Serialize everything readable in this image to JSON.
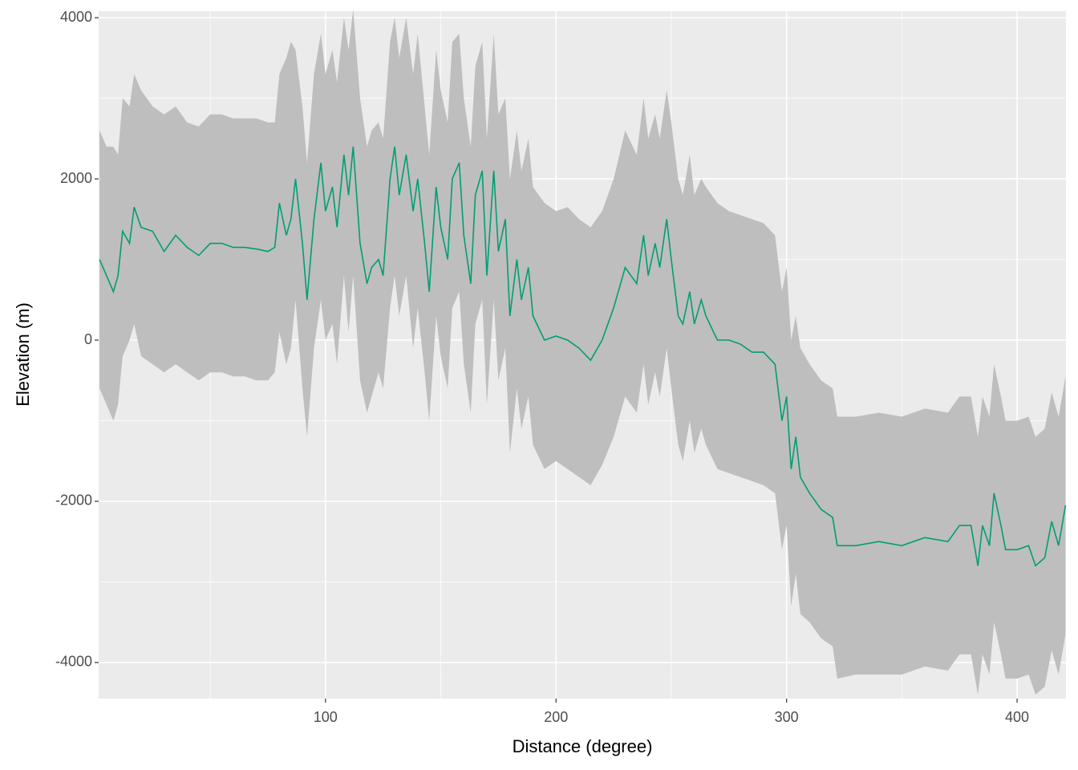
{
  "chart_data": {
    "type": "line",
    "x_label": "Distance (degree)",
    "y_label": "Elevation (m)",
    "xlim": [
      1.6,
      421.2
    ],
    "ylim": [
      -4448,
      4080
    ],
    "xticks": [
      100,
      200,
      300,
      400
    ],
    "yticks": [
      -4000,
      -2000,
      0,
      2000,
      4000
    ],
    "grid": true,
    "x": [
      2,
      5,
      8,
      10,
      12,
      15,
      17,
      20,
      25,
      30,
      35,
      40,
      45,
      50,
      55,
      60,
      65,
      70,
      75,
      78,
      80,
      83,
      85,
      87,
      90,
      92,
      95,
      98,
      100,
      103,
      105,
      108,
      110,
      112,
      115,
      118,
      120,
      123,
      125,
      128,
      130,
      132,
      135,
      138,
      140,
      143,
      145,
      148,
      150,
      153,
      155,
      158,
      160,
      163,
      165,
      168,
      170,
      173,
      175,
      178,
      180,
      183,
      185,
      188,
      190,
      195,
      200,
      205,
      210,
      215,
      220,
      225,
      230,
      235,
      238,
      240,
      243,
      245,
      248,
      250,
      253,
      255,
      258,
      260,
      263,
      265,
      270,
      275,
      280,
      285,
      290,
      295,
      298,
      300,
      302,
      304,
      306,
      310,
      315,
      320,
      322,
      330,
      340,
      350,
      360,
      370,
      375,
      380,
      383,
      385,
      388,
      390,
      393,
      395,
      400,
      405,
      408,
      412,
      415,
      418,
      421
    ],
    "series": [
      {
        "color": "#009e73",
        "values": [
          1000,
          800,
          600,
          800,
          1350,
          1200,
          1650,
          1400,
          1350,
          1100,
          1300,
          1150,
          1050,
          1200,
          1200,
          1150,
          1150,
          1130,
          1100,
          1150,
          1700,
          1300,
          1500,
          2000,
          1200,
          500,
          1500,
          2200,
          1600,
          1900,
          1400,
          2300,
          1800,
          2400,
          1200,
          700,
          900,
          1000,
          800,
          2000,
          2400,
          1800,
          2300,
          1600,
          2000,
          1200,
          600,
          1900,
          1400,
          1000,
          2000,
          2200,
          1300,
          700,
          1800,
          2100,
          800,
          2100,
          1100,
          1500,
          300,
          1000,
          500,
          900,
          300,
          0,
          50,
          0,
          -100,
          -250,
          0,
          400,
          900,
          700,
          1300,
          800,
          1200,
          900,
          1500,
          1000,
          300,
          200,
          600,
          200,
          500,
          300,
          0,
          0,
          -50,
          -150,
          -150,
          -300,
          -1000,
          -700,
          -1600,
          -1200,
          -1700,
          -1900,
          -2100,
          -2200,
          -2550,
          -2550,
          -2500,
          -2550,
          -2450,
          -2500,
          -2300,
          -2300,
          -2800,
          -2300,
          -2550,
          -1900,
          -2300,
          -2600,
          -2600,
          -2550,
          -2800,
          -2700,
          -2250,
          -2550,
          -2050
        ]
      }
    ],
    "ribbon": {
      "color": "#bebebe",
      "lower": [
        -600,
        -800,
        -1000,
        -800,
        -200,
        0,
        200,
        -200,
        -300,
        -400,
        -300,
        -400,
        -500,
        -400,
        -400,
        -450,
        -450,
        -500,
        -500,
        -400,
        100,
        -300,
        -100,
        500,
        -600,
        -1200,
        -100,
        500,
        0,
        200,
        -300,
        800,
        100,
        800,
        -500,
        -900,
        -700,
        -400,
        -600,
        400,
        800,
        300,
        800,
        -100,
        400,
        -400,
        -1000,
        300,
        -200,
        -600,
        400,
        600,
        -300,
        -900,
        200,
        500,
        -800,
        500,
        -500,
        -100,
        -1400,
        -600,
        -1100,
        -700,
        -1300,
        -1600,
        -1500,
        -1600,
        -1700,
        -1800,
        -1550,
        -1200,
        -700,
        -900,
        -300,
        -800,
        -400,
        -700,
        -100,
        -600,
        -1300,
        -1500,
        -1000,
        -1400,
        -1100,
        -1300,
        -1600,
        -1650,
        -1700,
        -1750,
        -1800,
        -1900,
        -2600,
        -2300,
        -3300,
        -2900,
        -3400,
        -3500,
        -3700,
        -3800,
        -4200,
        -4150,
        -4150,
        -4150,
        -4050,
        -4100,
        -3900,
        -3900,
        -4400,
        -3900,
        -4150,
        -3500,
        -3900,
        -4200,
        -4200,
        -4150,
        -4400,
        -4300,
        -3850,
        -4150,
        -3650
      ],
      "upper": [
        2600,
        2400,
        2400,
        2300,
        3000,
        2900,
        3300,
        3100,
        2900,
        2800,
        2900,
        2700,
        2650,
        2800,
        2800,
        2750,
        2750,
        2750,
        2700,
        2700,
        3300,
        3500,
        3700,
        3600,
        2900,
        2200,
        3300,
        3800,
        3300,
        3600,
        3200,
        4000,
        3600,
        4100,
        3000,
        2400,
        2600,
        2700,
        2500,
        3700,
        4000,
        3500,
        4000,
        3300,
        3800,
        2900,
        2300,
        3600,
        3100,
        2700,
        3700,
        3800,
        3000,
        2400,
        3400,
        3700,
        2500,
        3800,
        2800,
        3000,
        2000,
        2600,
        2100,
        2500,
        1900,
        1700,
        1600,
        1650,
        1500,
        1400,
        1600,
        2000,
        2600,
        2300,
        3000,
        2500,
        2800,
        2500,
        3100,
        2700,
        2000,
        1800,
        2300,
        1800,
        2000,
        1900,
        1700,
        1600,
        1550,
        1500,
        1450,
        1300,
        600,
        900,
        0,
        300,
        -100,
        -300,
        -500,
        -600,
        -950,
        -950,
        -900,
        -950,
        -850,
        -900,
        -700,
        -700,
        -1200,
        -700,
        -950,
        -300,
        -700,
        -1000,
        -1000,
        -950,
        -1200,
        -1100,
        -650,
        -950,
        -450
      ]
    }
  }
}
